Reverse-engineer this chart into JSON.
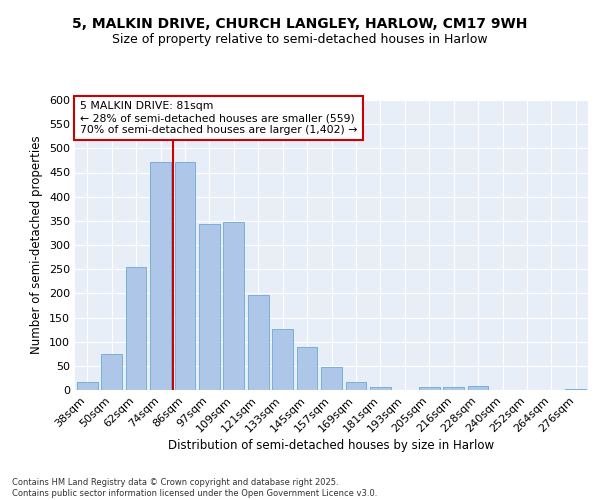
{
  "title1": "5, MALKIN DRIVE, CHURCH LANGLEY, HARLOW, CM17 9WH",
  "title2": "Size of property relative to semi-detached houses in Harlow",
  "xlabel": "Distribution of semi-detached houses by size in Harlow",
  "ylabel": "Number of semi-detached properties",
  "categories": [
    "38sqm",
    "50sqm",
    "62sqm",
    "74sqm",
    "86sqm",
    "97sqm",
    "109sqm",
    "121sqm",
    "133sqm",
    "145sqm",
    "157sqm",
    "169sqm",
    "181sqm",
    "193sqm",
    "205sqm",
    "216sqm",
    "228sqm",
    "240sqm",
    "252sqm",
    "264sqm",
    "276sqm"
  ],
  "values": [
    17,
    75,
    255,
    472,
    472,
    343,
    347,
    197,
    127,
    89,
    47,
    17,
    6,
    1,
    7,
    7,
    8,
    1,
    1,
    1,
    2
  ],
  "bar_color": "#aec6e8",
  "bar_edge_color": "#6aaad4",
  "vline_x": 3.5,
  "vline_color": "#cc0000",
  "annotation_text": "5 MALKIN DRIVE: 81sqm\n← 28% of semi-detached houses are smaller (559)\n70% of semi-detached houses are larger (1,402) →",
  "annotation_box_color": "#ffffff",
  "annotation_box_edge_color": "#cc0000",
  "ylim": [
    0,
    600
  ],
  "yticks": [
    0,
    50,
    100,
    150,
    200,
    250,
    300,
    350,
    400,
    450,
    500,
    550,
    600
  ],
  "background_color": "#e8eef8",
  "footer_text": "Contains HM Land Registry data © Crown copyright and database right 2025.\nContains public sector information licensed under the Open Government Licence v3.0.",
  "grid_color": "#ffffff",
  "title_fontsize": 10,
  "subtitle_fontsize": 9,
  "bar_width": 0.85
}
